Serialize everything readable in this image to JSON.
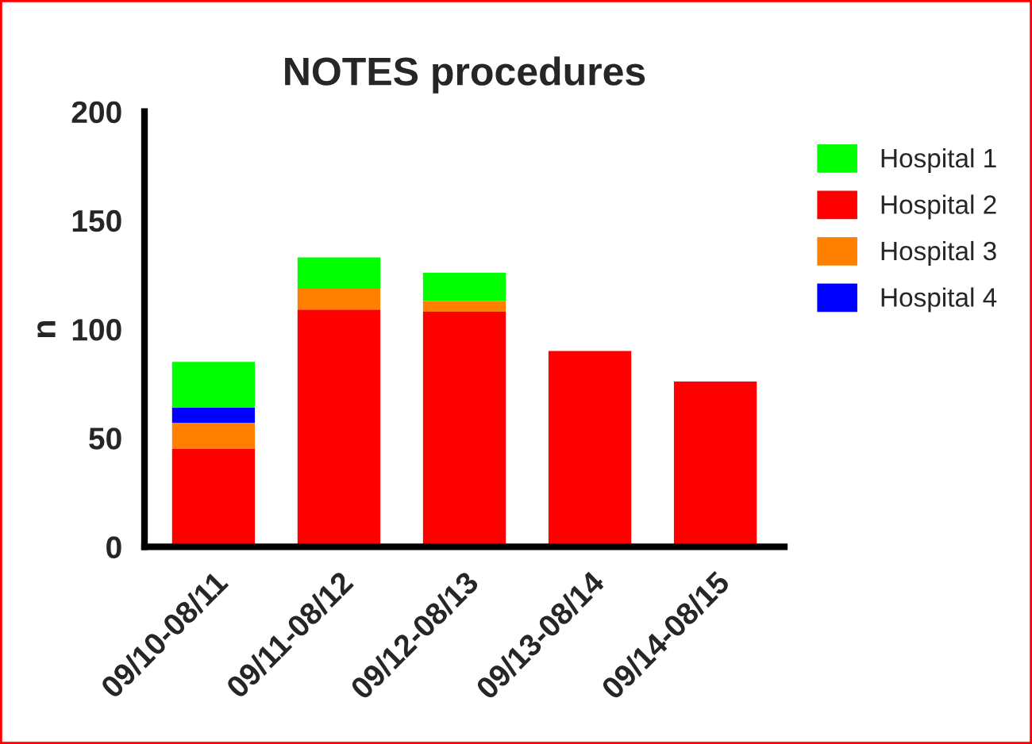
{
  "chart_data": {
    "type": "bar",
    "title": "NOTES procedures",
    "ylabel": "n",
    "categories": [
      "09/10-08/11",
      "09/11-08/12",
      "09/12-08/13",
      "09/13-08/14",
      "09/14-08/15"
    ],
    "stacked": true,
    "series": [
      {
        "name": "Hospital 2",
        "color": "#ff0000",
        "values": [
          45,
          109,
          108,
          90,
          76
        ]
      },
      {
        "name": "Hospital 3",
        "color": "#ff8000",
        "values": [
          12,
          10,
          5,
          0,
          0
        ]
      },
      {
        "name": "Hospital 4",
        "color": "#0000ff",
        "values": [
          7,
          0,
          0,
          0,
          0
        ]
      },
      {
        "name": "Hospital 1",
        "color": "#00ff00",
        "values": [
          21,
          14,
          13,
          0,
          0
        ]
      }
    ],
    "ylim": [
      0,
      200
    ],
    "yticks": [
      0,
      50,
      100,
      150,
      200
    ],
    "grid": false,
    "legend": "top right"
  }
}
